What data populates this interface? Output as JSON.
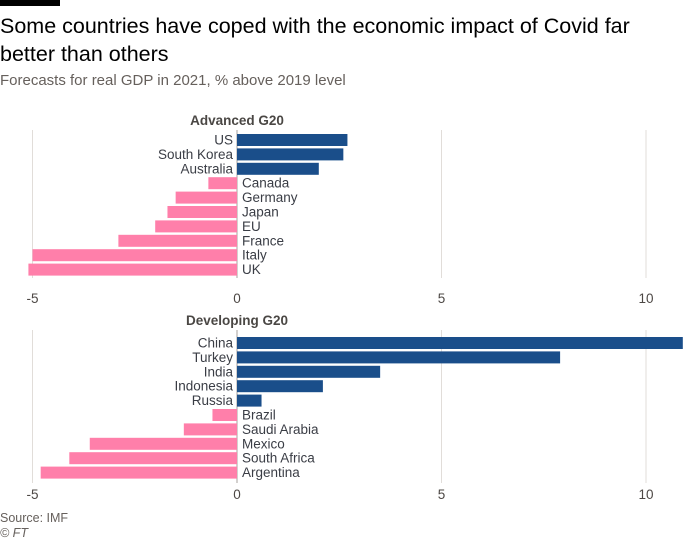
{
  "header": {
    "title": "Some countries have coped with the economic impact of Covid far better than others",
    "subtitle": "Forecasts for real GDP in 2021, % above 2019 level"
  },
  "footer": {
    "source": "Source: IMF",
    "credit": "© FT"
  },
  "colors": {
    "positive": "#1a4e8a",
    "negative": "#ff7faa",
    "grid": "#e1ddd9",
    "zero_line": "#a7a29c",
    "label": "#3a3d45",
    "tick": "#4d4845"
  },
  "chart_data": [
    {
      "type": "bar",
      "orientation": "horizontal",
      "title": "Advanced G20",
      "categories": [
        "US",
        "South Korea",
        "Australia",
        "Canada",
        "Germany",
        "Japan",
        "EU",
        "France",
        "Italy",
        "UK"
      ],
      "values": [
        2.7,
        2.6,
        2.0,
        -0.7,
        -1.5,
        -1.7,
        -2.0,
        -2.9,
        -5.0,
        -5.1
      ],
      "xlim": [
        -5,
        11
      ],
      "xticks": [
        "-5",
        "0",
        "5",
        "10"
      ],
      "grid": true
    },
    {
      "type": "bar",
      "orientation": "horizontal",
      "title": "Developing G20",
      "categories": [
        "China",
        "Turkey",
        "India",
        "Indonesia",
        "Russia",
        "Brazil",
        "Saudi Arabia",
        "Mexico",
        "South Africa",
        "Argentina"
      ],
      "values": [
        10.9,
        7.9,
        3.5,
        2.1,
        0.6,
        -0.6,
        -1.3,
        -3.6,
        -4.1,
        -4.8
      ],
      "xlim": [
        -5,
        11
      ],
      "xticks": [
        "-5",
        "0",
        "5",
        "10"
      ],
      "grid": true
    }
  ]
}
